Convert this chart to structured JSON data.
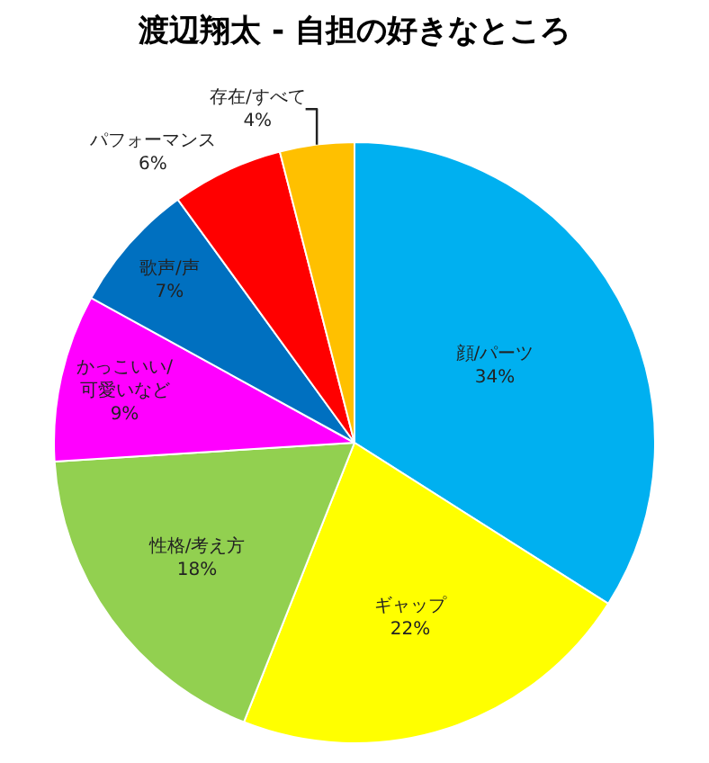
{
  "chart_data": {
    "type": "pie",
    "title": "渡辺翔太 - 自担の好きなところ",
    "categories": [
      "顔/パーツ",
      "ギャップ",
      "性格/考え方",
      "かっこいい/可愛いなど",
      "歌声/声",
      "パフォーマンス",
      "存在/すべて"
    ],
    "values": [
      34,
      22,
      18,
      9,
      7,
      6,
      4
    ],
    "value_labels": [
      "34%",
      "22%",
      "18%",
      "9%",
      "7%",
      "6%",
      "4%"
    ],
    "colors": [
      "#00b0f0",
      "#ffff00",
      "#92d050",
      "#ff00ff",
      "#0070c0",
      "#ff0000",
      "#ffc000"
    ],
    "legend": false
  }
}
